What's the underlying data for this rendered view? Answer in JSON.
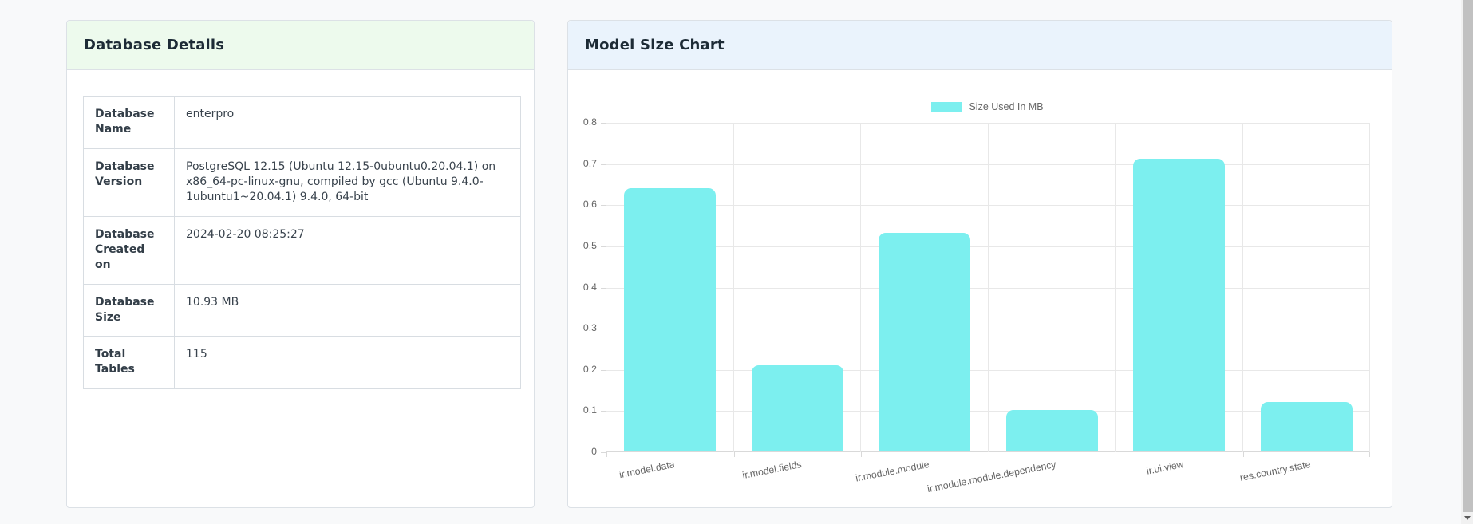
{
  "page": {
    "background": "#f8f9fa"
  },
  "database_details": {
    "title": "Database Details",
    "header_color": "#edfaed",
    "rows": [
      {
        "label": "Database Name",
        "value": "enterpro"
      },
      {
        "label": "Database Version",
        "value": "PostgreSQL 12.15 (Ubuntu 12.15-0ubuntu0.20.04.1) on x86_64-pc-linux-gnu, compiled by gcc (Ubuntu 9.4.0-1ubuntu1~20.04.1) 9.4.0, 64-bit"
      },
      {
        "label": "Database Created on",
        "value": "2024-02-20 08:25:27"
      },
      {
        "label": "Database Size",
        "value": "10.93 MB"
      },
      {
        "label": "Total Tables",
        "value": "115"
      }
    ]
  },
  "model_size_chart": {
    "title": "Model Size Chart",
    "header_color": "#eaf3fc",
    "legend": {
      "label": "Size Used In MB",
      "swatch_color": "#7cefef"
    }
  },
  "chart_data": {
    "type": "bar",
    "title": "Model Size Chart",
    "series_name": "Size Used In MB",
    "categories": [
      "ir.model.data",
      "ir.model.fields",
      "ir.module.module",
      "ir.module.module.dependency",
      "ir.ui.view",
      "res.country.state"
    ],
    "values": [
      0.64,
      0.21,
      0.53,
      0.1,
      0.71,
      0.12
    ],
    "xlabel": "",
    "ylabel": "",
    "ylim": [
      0,
      0.8
    ],
    "yticks": [
      0,
      0.1,
      0.2,
      0.3,
      0.4,
      0.5,
      0.6,
      0.7,
      0.8
    ],
    "ytick_labels": [
      "0",
      "0.1",
      "0.2",
      "0.3",
      "0.4",
      "0.5",
      "0.6",
      "0.7",
      "0.8"
    ],
    "grid": true,
    "legend_position": "top",
    "bar_color": "#7cefef",
    "grid_color": "#e8e8e8",
    "axis_color": "#d9d9d9",
    "tick_text_color": "#666666"
  }
}
